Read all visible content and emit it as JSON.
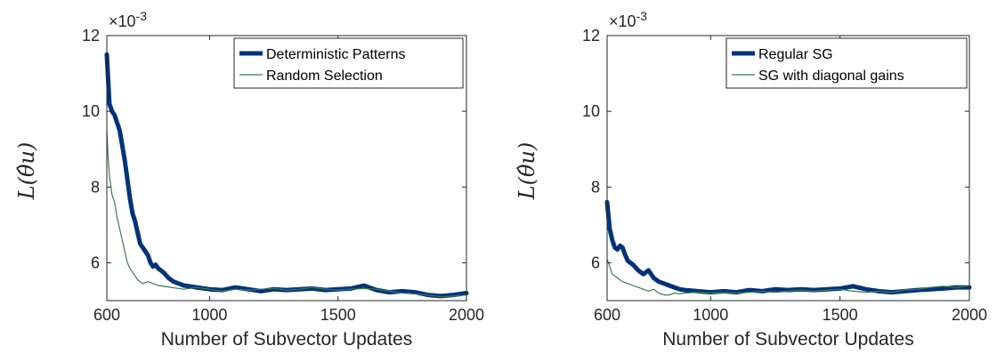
{
  "chart_data": [
    {
      "type": "line",
      "xlabel": "Number of Subvector Updates",
      "ylabel": "L(θ̂u)",
      "y_multiplier": "×10",
      "y_exponent": "-3",
      "xlim": [
        600,
        2000
      ],
      "ylim": [
        5.0,
        12.0
      ],
      "xticks": [
        600,
        1000,
        1500,
        2000
      ],
      "yticks": [
        6,
        8,
        10,
        12
      ],
      "grid": false,
      "legend_position": "top-right",
      "series": [
        {
          "name": "Deterministic Patterns",
          "color": "#00337a",
          "style": "thick",
          "x": [
            600,
            610,
            620,
            630,
            640,
            650,
            660,
            670,
            680,
            690,
            700,
            710,
            720,
            730,
            740,
            750,
            760,
            770,
            780,
            790,
            800,
            820,
            840,
            860,
            880,
            900,
            950,
            1000,
            1050,
            1100,
            1150,
            1200,
            1250,
            1300,
            1350,
            1400,
            1450,
            1500,
            1550,
            1600,
            1650,
            1700,
            1750,
            1800,
            1850,
            1900,
            1950,
            2000
          ],
          "y": [
            11.5,
            10.2,
            10.0,
            9.9,
            9.7,
            9.5,
            9.1,
            8.7,
            8.2,
            7.7,
            7.3,
            7.1,
            6.8,
            6.5,
            6.4,
            6.3,
            6.2,
            6.0,
            5.9,
            5.95,
            5.85,
            5.75,
            5.6,
            5.5,
            5.45,
            5.4,
            5.35,
            5.3,
            5.28,
            5.35,
            5.3,
            5.25,
            5.3,
            5.28,
            5.3,
            5.32,
            5.28,
            5.3,
            5.32,
            5.4,
            5.28,
            5.22,
            5.25,
            5.22,
            5.15,
            5.12,
            5.15,
            5.2
          ]
        },
        {
          "name": "Random Selection",
          "color": "#3e7a4e",
          "style": "thin",
          "x": [
            600,
            605,
            610,
            620,
            630,
            640,
            650,
            660,
            670,
            680,
            690,
            700,
            720,
            740,
            760,
            780,
            800,
            850,
            900,
            950,
            1000,
            1050,
            1100,
            1150,
            1200,
            1250,
            1300,
            1350,
            1400,
            1450,
            1500,
            1550,
            1600,
            1650,
            1700,
            1750,
            1800,
            1850,
            1900,
            1950,
            2000
          ],
          "y": [
            9.5,
            8.8,
            8.3,
            7.8,
            7.6,
            7.2,
            6.9,
            6.6,
            6.3,
            6.0,
            5.85,
            5.75,
            5.55,
            5.45,
            5.5,
            5.45,
            5.4,
            5.35,
            5.3,
            5.35,
            5.3,
            5.25,
            5.3,
            5.28,
            5.3,
            5.32,
            5.28,
            5.3,
            5.35,
            5.3,
            5.28,
            5.3,
            5.32,
            5.3,
            5.25,
            5.2,
            5.18,
            5.15,
            5.1,
            5.12,
            5.15
          ]
        }
      ]
    },
    {
      "type": "line",
      "xlabel": "Number of Subvector Updates",
      "ylabel": "L(θ̂u)",
      "y_multiplier": "×10",
      "y_exponent": "-3",
      "xlim": [
        600,
        2000
      ],
      "ylim": [
        5.0,
        12.0
      ],
      "xticks": [
        600,
        1000,
        1500,
        2000
      ],
      "yticks": [
        6,
        8,
        10,
        12
      ],
      "grid": false,
      "legend_position": "top-right",
      "series": [
        {
          "name": "Regular SG",
          "color": "#00337a",
          "style": "thick",
          "x": [
            600,
            610,
            620,
            630,
            640,
            650,
            660,
            670,
            680,
            690,
            700,
            720,
            740,
            760,
            780,
            800,
            820,
            840,
            860,
            880,
            900,
            950,
            1000,
            1050,
            1100,
            1150,
            1200,
            1250,
            1300,
            1350,
            1400,
            1450,
            1500,
            1550,
            1600,
            1650,
            1700,
            1750,
            1800,
            1850,
            1900,
            1950,
            2000
          ],
          "y": [
            7.6,
            6.9,
            6.6,
            6.4,
            6.35,
            6.45,
            6.4,
            6.2,
            6.05,
            6.0,
            5.95,
            5.8,
            5.7,
            5.8,
            5.6,
            5.5,
            5.45,
            5.4,
            5.35,
            5.3,
            5.28,
            5.25,
            5.22,
            5.25,
            5.22,
            5.28,
            5.25,
            5.3,
            5.28,
            5.3,
            5.28,
            5.3,
            5.32,
            5.38,
            5.3,
            5.25,
            5.22,
            5.25,
            5.28,
            5.3,
            5.32,
            5.35,
            5.35
          ]
        },
        {
          "name": "SG with diagonal gains",
          "color": "#3e7a4e",
          "style": "thin",
          "x": [
            600,
            605,
            610,
            620,
            640,
            660,
            680,
            700,
            720,
            740,
            760,
            780,
            800,
            820,
            840,
            860,
            880,
            900,
            950,
            1000,
            1050,
            1100,
            1150,
            1200,
            1250,
            1300,
            1350,
            1400,
            1450,
            1500,
            1550,
            1600,
            1650,
            1700,
            1750,
            1800,
            1850,
            1900,
            1950,
            2000
          ],
          "y": [
            6.1,
            6.0,
            5.9,
            5.7,
            5.6,
            5.5,
            5.45,
            5.4,
            5.35,
            5.3,
            5.25,
            5.3,
            5.2,
            5.15,
            5.15,
            5.2,
            5.18,
            5.2,
            5.22,
            5.2,
            5.22,
            5.2,
            5.22,
            5.25,
            5.22,
            5.25,
            5.28,
            5.25,
            5.28,
            5.3,
            5.25,
            5.22,
            5.25,
            5.22,
            5.28,
            5.3,
            5.35,
            5.38,
            5.35,
            5.4
          ]
        }
      ]
    }
  ]
}
